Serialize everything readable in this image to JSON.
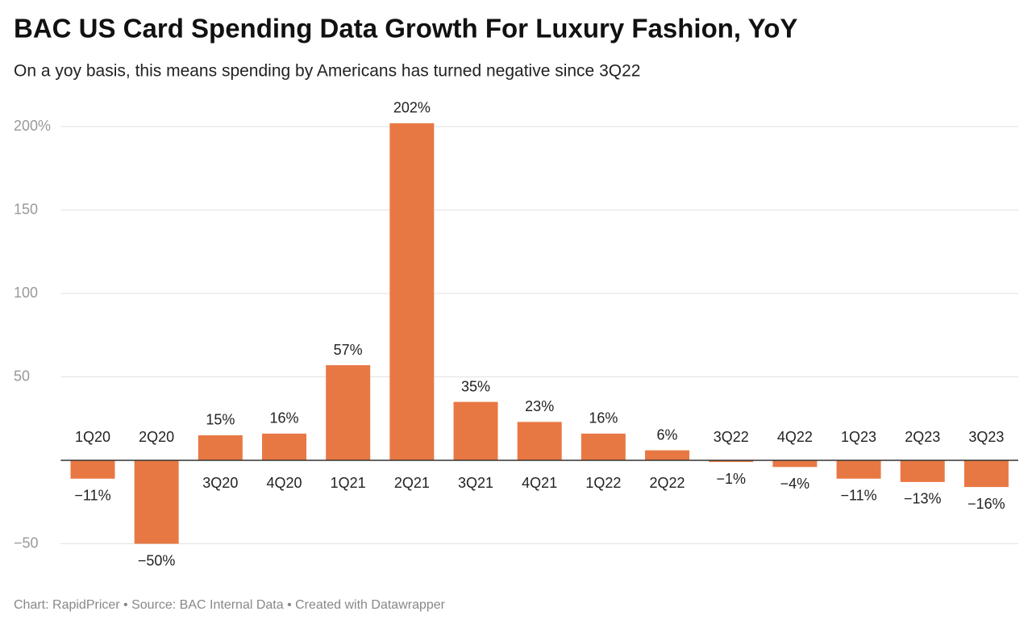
{
  "chart_data": {
    "type": "bar",
    "title": "BAC US Card Spending Data Growth For Luxury Fashion, YoY",
    "subtitle": "On a yoy basis, this means spending by Americans has turned negative since 3Q22",
    "source": "Chart: RapidPricer • Source: BAC Internal Data • Created with Datawrapper",
    "categories": [
      "1Q20",
      "2Q20",
      "3Q20",
      "4Q20",
      "1Q21",
      "2Q21",
      "3Q21",
      "4Q21",
      "1Q22",
      "2Q22",
      "3Q22",
      "4Q22",
      "1Q23",
      "2Q23",
      "3Q23"
    ],
    "values": [
      -11,
      -50,
      15,
      16,
      57,
      202,
      35,
      23,
      16,
      6,
      -1,
      -4,
      -11,
      -13,
      -16
    ],
    "value_labels": [
      "−11%",
      "−50%",
      "15%",
      "16%",
      "57%",
      "202%",
      "35%",
      "23%",
      "16%",
      "6%",
      "−1%",
      "−4%",
      "−11%",
      "−13%",
      "−16%"
    ],
    "color": "#e87843",
    "ylim": [
      -60,
      210
    ],
    "yticks": [
      {
        "value": -50,
        "label": "−50"
      },
      50,
      100,
      150,
      {
        "value": 200,
        "label": "200%"
      }
    ],
    "grid": true
  }
}
